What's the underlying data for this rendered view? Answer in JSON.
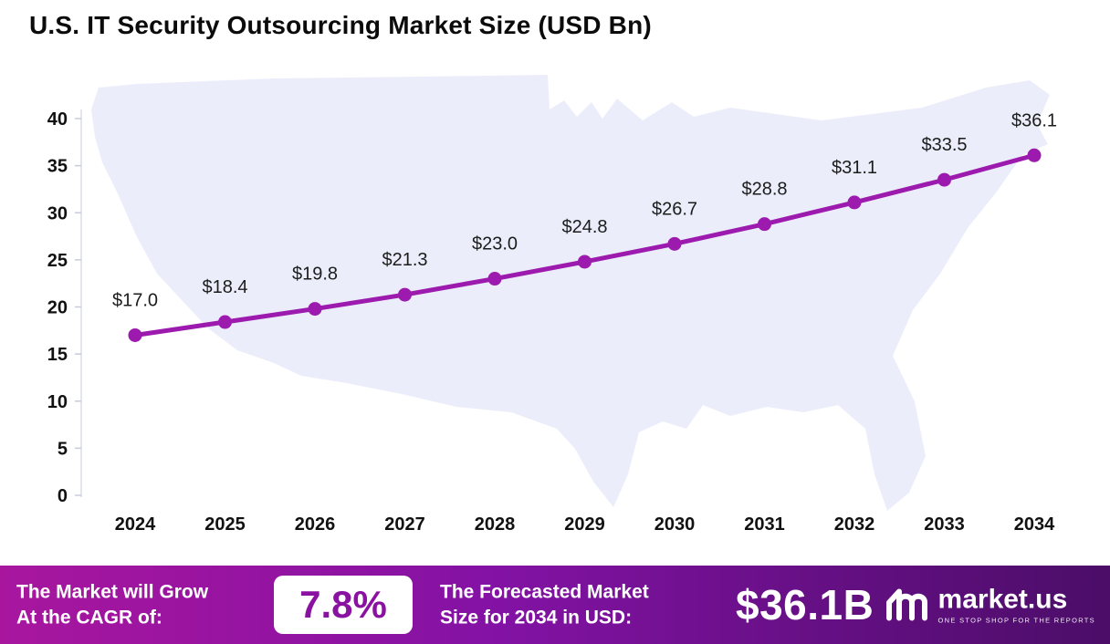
{
  "chart_data": {
    "type": "line",
    "title": "U.S. IT Security Outsourcing Market Size (USD Bn)",
    "x": [
      2024,
      2025,
      2026,
      2027,
      2028,
      2029,
      2030,
      2031,
      2032,
      2033,
      2034
    ],
    "series": [
      {
        "name": "U.S. IT Security Outsourcing Market Size (USD Bn)",
        "values": [
          17.0,
          18.4,
          19.8,
          21.3,
          23.0,
          24.8,
          26.7,
          28.8,
          31.1,
          33.5,
          36.1
        ]
      }
    ],
    "point_labels": [
      "$17.0",
      "$18.4",
      "$19.8",
      "$21.3",
      "$23.0",
      "$24.8",
      "$26.7",
      "$28.8",
      "$31.1",
      "$33.5",
      "$36.1"
    ],
    "ylim": [
      0,
      40
    ],
    "yticks": [
      0,
      5,
      10,
      15,
      20,
      25,
      30,
      35,
      40
    ],
    "grid": false,
    "legend": "none",
    "line_color": "#9c1aae"
  },
  "colors": {
    "accent": "#9c1aae",
    "map_fill": "#ebeefa",
    "footer_gradient": [
      "#a8169e",
      "#8312a4",
      "#4b0d68"
    ],
    "cagr_text": "#8a12a0"
  },
  "footer": {
    "cagr_label": "The Market will Grow\nAt the CAGR of:",
    "cagr_value": "7.8%",
    "forecast_label": "The Forecasted Market\nSize for 2034 in USD:",
    "forecast_value": "$36.1B",
    "brand": "market.us",
    "brand_tagline": "ONE STOP SHOP FOR THE REPORTS"
  }
}
